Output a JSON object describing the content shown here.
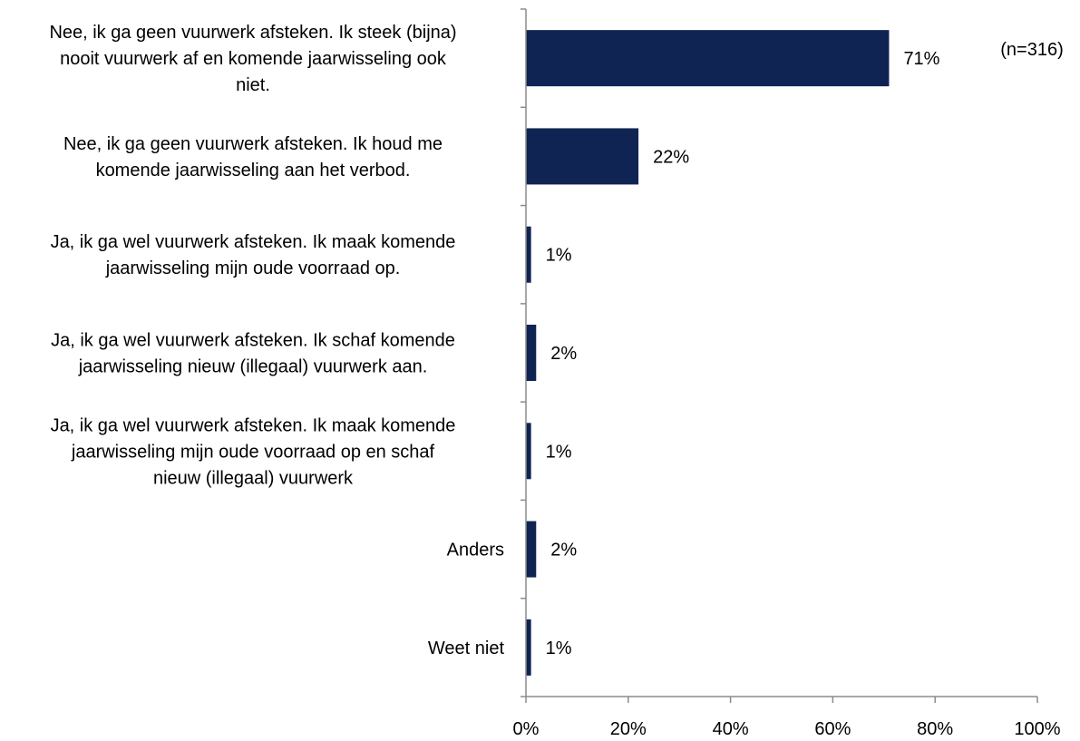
{
  "chart_data": {
    "type": "bar",
    "orientation": "horizontal",
    "categories": [
      [
        "Nee, ik ga geen vuurwerk afsteken. Ik steek (bijna)",
        "nooit vuurwerk af en komende jaarwisseling ook",
        "niet."
      ],
      [
        "Nee, ik ga geen vuurwerk afsteken. Ik houd me",
        "komende jaarwisseling aan het verbod."
      ],
      [
        "Ja, ik ga wel vuurwerk afsteken. Ik maak komende",
        "jaarwisseling mijn oude voorraad op."
      ],
      [
        "Ja, ik ga wel vuurwerk afsteken. Ik schaf komende",
        "jaarwisseling nieuw (illegaal) vuurwerk aan."
      ],
      [
        "Ja, ik ga wel vuurwerk afsteken. Ik maak komende",
        "jaarwisseling mijn oude voorraad op en schaf",
        "nieuw (illegaal) vuurwerk"
      ],
      [
        "Anders"
      ],
      [
        "Weet niet"
      ]
    ],
    "values": [
      71,
      22,
      1,
      2,
      1,
      2,
      1
    ],
    "value_labels": [
      "71%",
      "22%",
      "1%",
      "2%",
      "1%",
      "2%",
      "1%"
    ],
    "xlim": [
      0,
      100
    ],
    "x_ticks": [
      "0%",
      "20%",
      "40%",
      "60%",
      "80%",
      "100%"
    ],
    "annotation": "(n=316)",
    "bar_color": "#0f2453",
    "axis_color": "#8c8c8c",
    "grid": false,
    "legend": "none"
  }
}
